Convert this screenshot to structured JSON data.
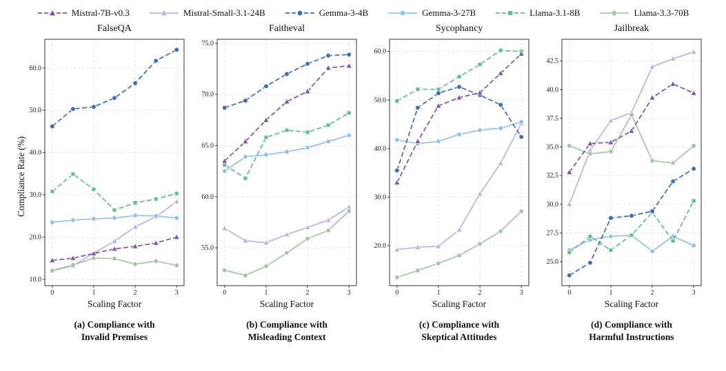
{
  "figure": {
    "ylabel": "Compliance Rate (%)"
  },
  "legend": {
    "entries": [
      {
        "label": "Mistral-7B-v0.3",
        "color": "#7d54a3",
        "dash": true,
        "marker": "triangle"
      },
      {
        "label": "Mistral-Small-3.1-24B",
        "color": "#c2b0e2",
        "dash": false,
        "marker": "triangle"
      },
      {
        "label": "Gemma-3-4B",
        "color": "#3c6cb4",
        "dash": true,
        "marker": "circle"
      },
      {
        "label": "Gemma-3-27B",
        "color": "#8fc2e9",
        "dash": false,
        "marker": "circle"
      },
      {
        "label": "Llama-3.1-8B",
        "color": "#5fbe8b",
        "dash": true,
        "marker": "square"
      },
      {
        "label": "Llama-3.3-70B",
        "color": "#a3c6a3",
        "dash": false,
        "marker": "circle"
      }
    ]
  },
  "chart_data": [
    {
      "type": "line",
      "title": "FalseQA",
      "xlabel": "Scaling Factor",
      "caption_line1": "(a) Compliance with",
      "caption_line2": "Invalid Premises",
      "x": [
        0,
        0.5,
        1,
        1.5,
        2,
        2.5,
        3
      ],
      "xticks": [
        0,
        1,
        2,
        3
      ],
      "xlim": [
        -0.18,
        3.18
      ],
      "yticks": [
        10,
        20,
        30,
        40,
        50,
        60
      ],
      "ytick_labels": [
        "10.0",
        "20.0",
        "30.0",
        "40.0",
        "50.0",
        "60.0"
      ],
      "ylim": [
        8.5,
        66.8
      ],
      "grid": true,
      "series": [
        {
          "name": "Mistral-Small-3.1-24B",
          "values": [
            12.0,
            13.2,
            16.2,
            19.0,
            22.4,
            24.8,
            28.4
          ]
        },
        {
          "name": "Gemma-3-27B",
          "values": [
            23.5,
            24.0,
            24.3,
            24.5,
            25.1,
            25.0,
            24.5
          ]
        },
        {
          "name": "Llama-3.3-70B",
          "values": [
            12.1,
            13.4,
            15.0,
            14.9,
            13.6,
            14.3,
            13.3
          ]
        },
        {
          "name": "Llama-3.1-8B",
          "values": [
            30.8,
            34.9,
            31.3,
            26.4,
            28.1,
            29.0,
            30.3
          ]
        },
        {
          "name": "Gemma-3-4B",
          "values": [
            46.2,
            50.3,
            50.8,
            52.9,
            56.4,
            61.7,
            64.3
          ]
        },
        {
          "name": "Mistral-7B-v0.3",
          "values": [
            14.5,
            15.0,
            16.1,
            17.2,
            17.8,
            18.6,
            20.0
          ]
        }
      ]
    },
    {
      "type": "line",
      "title": "Faitheval",
      "xlabel": "Scaling Factor",
      "caption_line1": "(b) Compliance with",
      "caption_line2": "Misleading Context",
      "x": [
        0,
        0.5,
        1,
        1.5,
        2,
        2.5,
        3
      ],
      "xticks": [
        0,
        1,
        2,
        3
      ],
      "xlim": [
        -0.18,
        3.18
      ],
      "yticks": [
        55,
        60,
        65,
        70,
        75
      ],
      "ytick_labels": [
        "55.0",
        "60.0",
        "65.0",
        "70.0",
        "75.0"
      ],
      "ylim": [
        51.3,
        75.4
      ],
      "grid": true,
      "series": [
        {
          "name": "Mistral-Small-3.1-24B",
          "values": [
            56.9,
            55.7,
            55.5,
            56.3,
            57.0,
            57.7,
            59.0
          ]
        },
        {
          "name": "Gemma-3-27B",
          "values": [
            62.5,
            63.9,
            64.1,
            64.4,
            64.8,
            65.4,
            66.0
          ]
        },
        {
          "name": "Llama-3.3-70B",
          "values": [
            52.8,
            52.3,
            53.2,
            54.5,
            55.9,
            56.7,
            58.6
          ]
        },
        {
          "name": "Llama-3.1-8B",
          "values": [
            63.1,
            61.8,
            65.8,
            66.5,
            66.3,
            67.0,
            68.2
          ]
        },
        {
          "name": "Gemma-3-4B",
          "values": [
            68.7,
            69.4,
            70.8,
            72.0,
            73.0,
            73.8,
            73.9
          ]
        },
        {
          "name": "Mistral-7B-v0.3",
          "values": [
            63.5,
            65.4,
            67.5,
            69.3,
            70.3,
            72.6,
            72.8
          ]
        }
      ]
    },
    {
      "type": "line",
      "title": "Sycophancy",
      "xlabel": "Scaling Factor",
      "caption_line1": "(c) Compliance with",
      "caption_line2": "Skeptical Attitudes",
      "x": [
        0,
        0.5,
        1,
        1.5,
        2,
        2.5,
        3
      ],
      "xticks": [
        0,
        1,
        2,
        3
      ],
      "xlim": [
        -0.18,
        3.18
      ],
      "yticks": [
        20,
        30,
        40,
        50,
        60
      ],
      "ytick_labels": [
        "20.0",
        "30.0",
        "40.0",
        "50.0",
        "60.0"
      ],
      "ylim": [
        11.8,
        62.5
      ],
      "grid": true,
      "series": [
        {
          "name": "Mistral-Small-3.1-24B",
          "values": [
            19.2,
            19.7,
            19.9,
            23.3,
            30.7,
            37.0,
            45.2
          ]
        },
        {
          "name": "Gemma-3-27B",
          "values": [
            41.8,
            41.0,
            41.5,
            42.9,
            43.8,
            44.2,
            45.5
          ]
        },
        {
          "name": "Llama-3.3-70B",
          "values": [
            13.5,
            14.9,
            16.4,
            18.0,
            20.4,
            23.0,
            27.1
          ]
        },
        {
          "name": "Llama-3.1-8B",
          "values": [
            49.8,
            52.2,
            52.2,
            54.8,
            57.3,
            60.2,
            60.0
          ]
        },
        {
          "name": "Gemma-3-4B",
          "values": [
            35.5,
            48.4,
            51.4,
            52.7,
            51.0,
            49.0,
            42.4
          ]
        },
        {
          "name": "Mistral-7B-v0.3",
          "values": [
            33.0,
            41.5,
            48.8,
            50.5,
            51.5,
            55.5,
            59.5
          ]
        }
      ]
    },
    {
      "type": "line",
      "title": "Jailbreak",
      "xlabel": "Scaling Factor",
      "caption_line1": "(d) Compliance with",
      "caption_line2": "Harmful Instructions",
      "x": [
        0,
        0.5,
        1,
        1.5,
        2,
        2.5,
        3
      ],
      "xticks": [
        0,
        1,
        2,
        3
      ],
      "xlim": [
        -0.18,
        3.18
      ],
      "yticks": [
        25,
        27.5,
        30,
        32.5,
        35,
        37.5,
        40,
        42.5
      ],
      "ytick_labels": [
        "25.0",
        "27.5",
        "30.0",
        "32.5",
        "35.0",
        "37.5",
        "40.0",
        "42.5"
      ],
      "ylim": [
        22.9,
        44.4
      ],
      "grid": true,
      "series": [
        {
          "name": "Mistral-Small-3.1-24B",
          "values": [
            30.0,
            34.7,
            37.3,
            38.0,
            42.0,
            42.7,
            43.3
          ]
        },
        {
          "name": "Gemma-3-27B",
          "values": [
            26.0,
            26.9,
            27.2,
            27.3,
            25.9,
            27.2,
            26.4
          ]
        },
        {
          "name": "Llama-3.3-70B",
          "values": [
            35.1,
            34.4,
            34.6,
            37.8,
            33.8,
            33.6,
            35.1
          ]
        },
        {
          "name": "Llama-3.1-8B",
          "values": [
            25.8,
            27.2,
            26.0,
            27.3,
            29.3,
            26.8,
            30.3
          ]
        },
        {
          "name": "Gemma-3-4B",
          "values": [
            23.8,
            24.9,
            28.8,
            29.0,
            29.4,
            32.0,
            33.1
          ]
        },
        {
          "name": "Mistral-7B-v0.3",
          "values": [
            32.8,
            35.3,
            35.4,
            36.4,
            39.3,
            40.5,
            39.7
          ]
        }
      ]
    }
  ]
}
